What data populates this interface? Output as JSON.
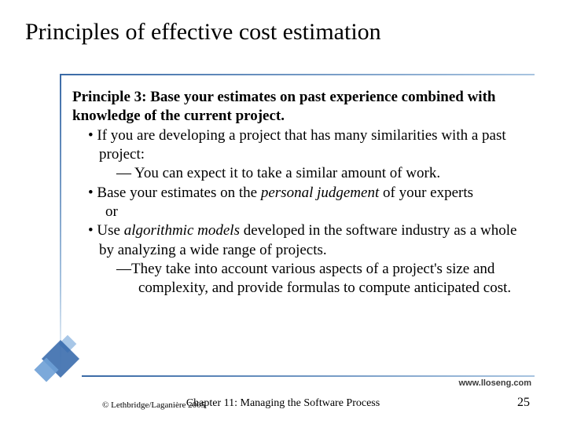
{
  "title": "Principles of effective cost estimation",
  "principle": {
    "heading_part1": "Principle 3:",
    "heading_part2": " Base your estimates on past experience combined with knowledge of the current project."
  },
  "bullets": {
    "b1": "If you are developing a project that has many similarities with a past project:",
    "b1a": "— You can expect it to take a similar amount of work.",
    "b2_pre": "Base your estimates on the ",
    "b2_em": "personal judgement",
    "b2_post": " of your experts",
    "or": "or",
    "b3_pre": "Use ",
    "b3_em": "algorithmic models",
    "b3_post": " developed in the software industry as a whole by analyzing a wide range of projects.",
    "b3a": "—They take into account various aspects of a project's size and complexity, and provide formulas to compute anticipated cost."
  },
  "url": "www.lloseng.com",
  "footer": {
    "copyright": "© Lethbridge/Laganière 2005",
    "chapter": "Chapter 11: Managing the Software Process",
    "page": "25"
  },
  "colors": {
    "accent": "#2f64a8",
    "text": "#000000",
    "bg": "#ffffff"
  }
}
